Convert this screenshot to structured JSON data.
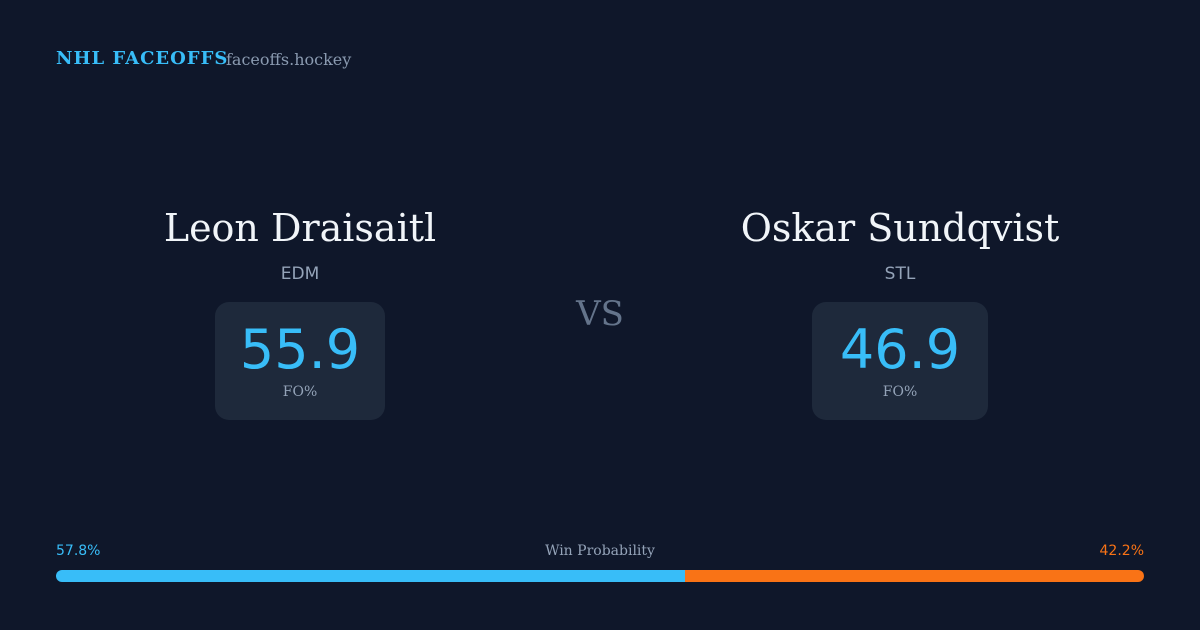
{
  "header": {
    "title": "NHL FACEOFFS",
    "site": "faceoffs.hockey"
  },
  "players": [
    {
      "name": "Leon Draisaitl",
      "team": "EDM",
      "stat": 55.9,
      "stat_label": "FO%"
    },
    {
      "name": "Oskar Sundqvist",
      "team": "STL",
      "stat": 46.9,
      "stat_label": "FO%"
    }
  ],
  "versus": "VS",
  "win_probability": {
    "label": "Win Probability",
    "left": {
      "value": 57.8,
      "label": "57.8%",
      "color": "#38bdf8"
    },
    "right": {
      "value": 42.2,
      "label": "42.2%",
      "color": "#f97316"
    }
  }
}
